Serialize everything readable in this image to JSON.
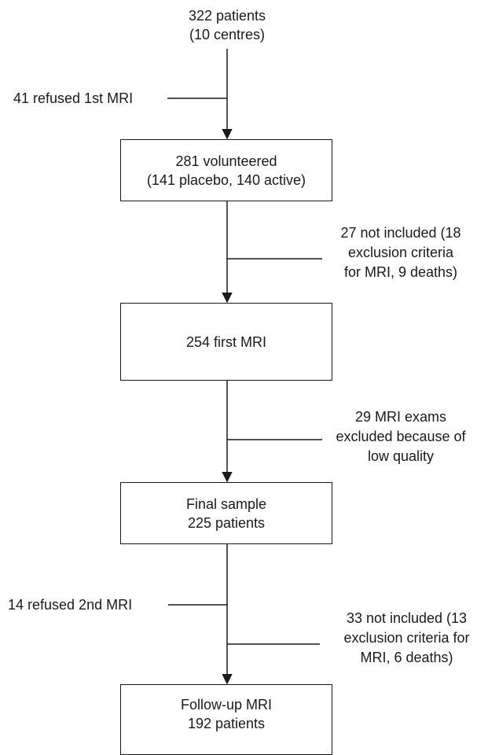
{
  "top": {
    "line1": "322 patients",
    "line2": "(10 centres)"
  },
  "exclusion1": {
    "text": "41 refused 1st MRI"
  },
  "box1": {
    "line1": "281 volunteered",
    "line2": "(141 placebo, 140 active)"
  },
  "exclusion2": {
    "line1": "27 not included (18",
    "line2": "exclusion criteria",
    "line3": "for MRI, 9 deaths)"
  },
  "box2": {
    "line1": "254 first MRI"
  },
  "exclusion3": {
    "line1": "29 MRI exams",
    "line2": "excluded because of",
    "line3": "low quality"
  },
  "box3": {
    "line1": "Final sample",
    "line2": "225 patients"
  },
  "exclusion4": {
    "text": "14 refused 2nd MRI"
  },
  "exclusion5": {
    "line1": "33 not included (13",
    "line2": "exclusion criteria for",
    "line3": "MRI, 6 deaths)"
  },
  "box4": {
    "line1": "Follow-up MRI",
    "line2": "192 patients"
  }
}
